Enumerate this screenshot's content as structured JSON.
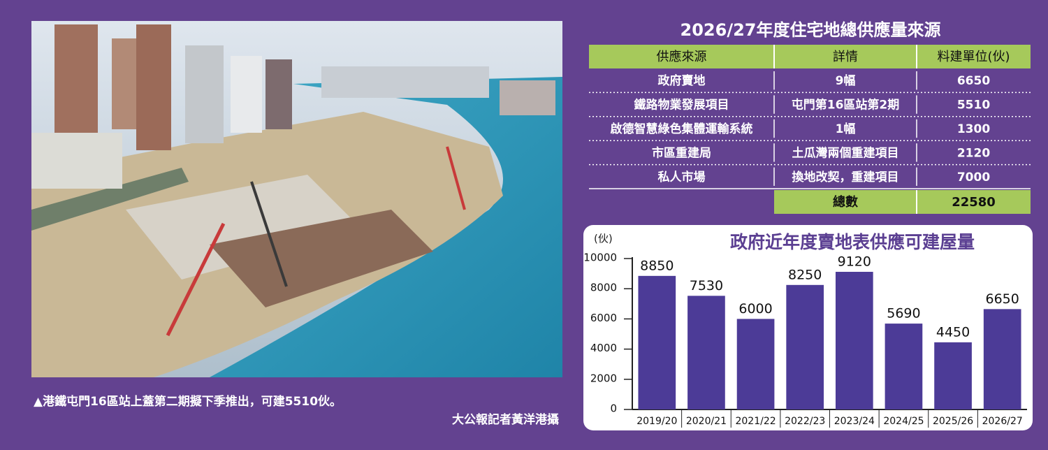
{
  "photo": {
    "caption": "▲港鐵屯門16區站上蓋第二期擬下季推出，可建5510伙。",
    "credit": "大公報記者黃洋港攝"
  },
  "table": {
    "title": "2026/27年度住宅地總供應量來源",
    "header": [
      "供應來源",
      "詳情",
      "料建單位(伙)"
    ],
    "rows": [
      [
        "政府賣地",
        "9幅",
        6650
      ],
      [
        "鐵路物業發展項目",
        "屯門第16區站第2期",
        5510
      ],
      [
        "啟德智慧綠色集體運輸系統",
        "1幅",
        1300
      ],
      [
        "市區重建局",
        "土瓜灣兩個重建項目",
        2120
      ],
      [
        "私人市場",
        "換地改契，重建項目",
        7000
      ]
    ],
    "total": [
      "總數",
      22580
    ]
  },
  "chart_data": {
    "type": "bar",
    "title": "政府近年度賣地表供應可建屋量",
    "y_label": "(伙)",
    "categories": [
      "2019/20",
      "2020/21",
      "2021/22",
      "2022/23",
      "2023/24",
      "2024/25",
      "2025/26",
      "2026/27"
    ],
    "values": [
      8850,
      7530,
      6000,
      8250,
      9120,
      5690,
      4450,
      6650
    ],
    "color": "#4c3b97",
    "ylim": [
      0,
      10000
    ],
    "yticks": [
      0,
      2000,
      4000,
      6000,
      8000,
      10000
    ],
    "grid": false
  }
}
